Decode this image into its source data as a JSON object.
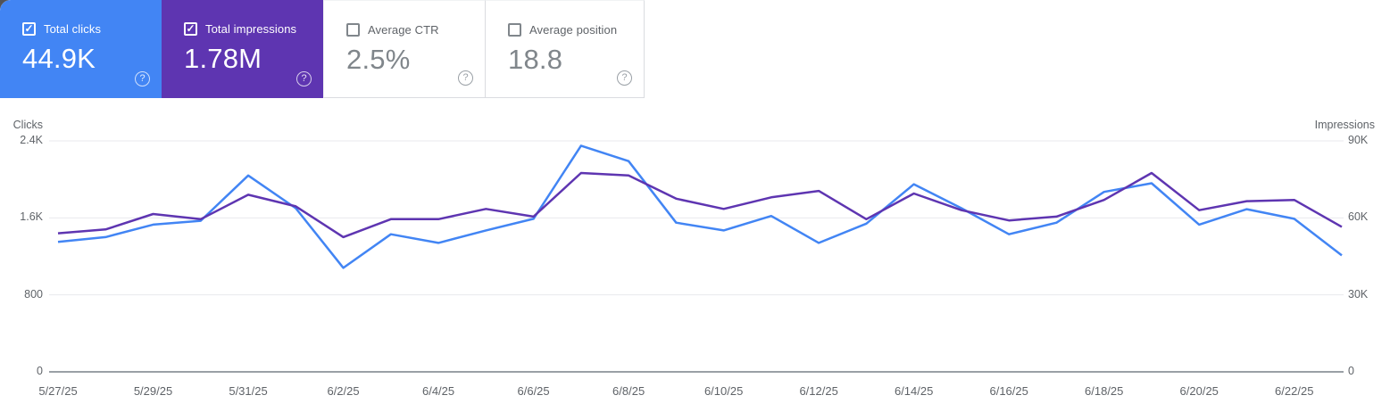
{
  "cards": [
    {
      "label": "Total clicks",
      "value": "44.9K",
      "checked": true,
      "color": "#4285f4"
    },
    {
      "label": "Total impressions",
      "value": "1.78M",
      "checked": true,
      "color": "#5e35b1"
    },
    {
      "label": "Average CTR",
      "value": "2.5%",
      "checked": false,
      "color": "#ffffff"
    },
    {
      "label": "Average position",
      "value": "18.8",
      "checked": false,
      "color": "#ffffff"
    }
  ],
  "icons": {
    "check": "✓",
    "help": "?"
  },
  "chart_data": {
    "type": "line",
    "categories": [
      "5/27/25",
      "5/28/25",
      "5/29/25",
      "5/30/25",
      "5/31/25",
      "6/1/25",
      "6/2/25",
      "6/3/25",
      "6/4/25",
      "6/5/25",
      "6/6/25",
      "6/7/25",
      "6/8/25",
      "6/9/25",
      "6/10/25",
      "6/11/25",
      "6/12/25",
      "6/13/25",
      "6/14/25",
      "6/15/25",
      "6/16/25",
      "6/17/25",
      "6/18/25",
      "6/19/25",
      "6/20/25",
      "6/21/25",
      "6/22/25",
      "6/23/25"
    ],
    "x_tick_labels": [
      "5/27/25",
      "5/29/25",
      "5/31/25",
      "6/2/25",
      "6/4/25",
      "6/6/25",
      "6/8/25",
      "6/10/25",
      "6/12/25",
      "6/14/25",
      "6/16/25",
      "6/18/25",
      "6/20/25",
      "6/22/25"
    ],
    "x_tick_every": 2,
    "left_axis": {
      "title": "Clicks",
      "ticks": [
        "2.4K",
        "1.6K",
        "800",
        "0"
      ],
      "max": 2400
    },
    "right_axis": {
      "title": "Impressions",
      "ticks": [
        "90K",
        "60K",
        "30K",
        "0"
      ],
      "max": 90000
    },
    "grid": true,
    "series": [
      {
        "name": "Total clicks",
        "axis": "left",
        "color": "#4285f4",
        "values": [
          1350,
          1400,
          1530,
          1570,
          2040,
          1700,
          1080,
          1430,
          1340,
          1470,
          1590,
          2350,
          2190,
          1550,
          1470,
          1620,
          1340,
          1540,
          1950,
          1700,
          1430,
          1550,
          1870,
          1960,
          1530,
          1690,
          1590,
          1210
        ]
      },
      {
        "name": "Total impressions",
        "axis": "right",
        "color": "#5e35b1",
        "values": [
          54000,
          55500,
          61500,
          59500,
          69000,
          64500,
          52500,
          59500,
          59500,
          63500,
          60500,
          77500,
          76500,
          67500,
          63500,
          68000,
          70500,
          59500,
          69500,
          63000,
          59000,
          60500,
          67000,
          77500,
          63000,
          66500,
          67000,
          56500
        ]
      }
    ],
    "colors": {
      "gridline": "#e8eaed",
      "axis_line": "#9aa0a6",
      "tick_text": "#5f6368"
    }
  }
}
